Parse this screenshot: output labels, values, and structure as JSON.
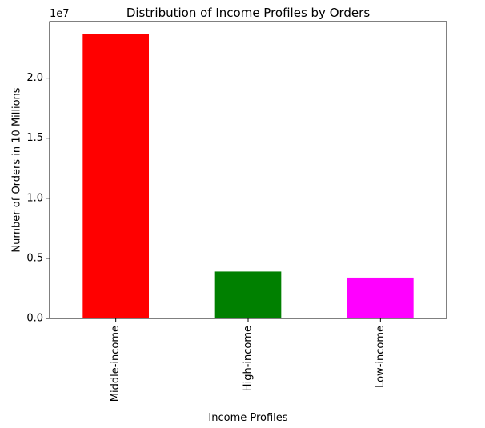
{
  "chart_data": {
    "type": "bar",
    "title": "Distribution of Income Profiles by Orders",
    "xlabel": "Income Profiles",
    "ylabel": "Number of Orders in 10 Millions",
    "y_offset_label": "1e7",
    "categories": [
      "Middle-income",
      "High-income",
      "Low-income"
    ],
    "values": [
      23700000,
      3900000,
      3400000
    ],
    "bar_colors": [
      "#ff0000",
      "#008000",
      "#ff00ff"
    ],
    "ylim": [
      0,
      24700000
    ],
    "yticks": [
      0,
      5000000,
      10000000,
      15000000,
      20000000
    ],
    "ytick_labels": [
      "0.0",
      "0.5",
      "1.0",
      "1.5",
      "2.0"
    ],
    "grid": false,
    "legend": "none"
  }
}
